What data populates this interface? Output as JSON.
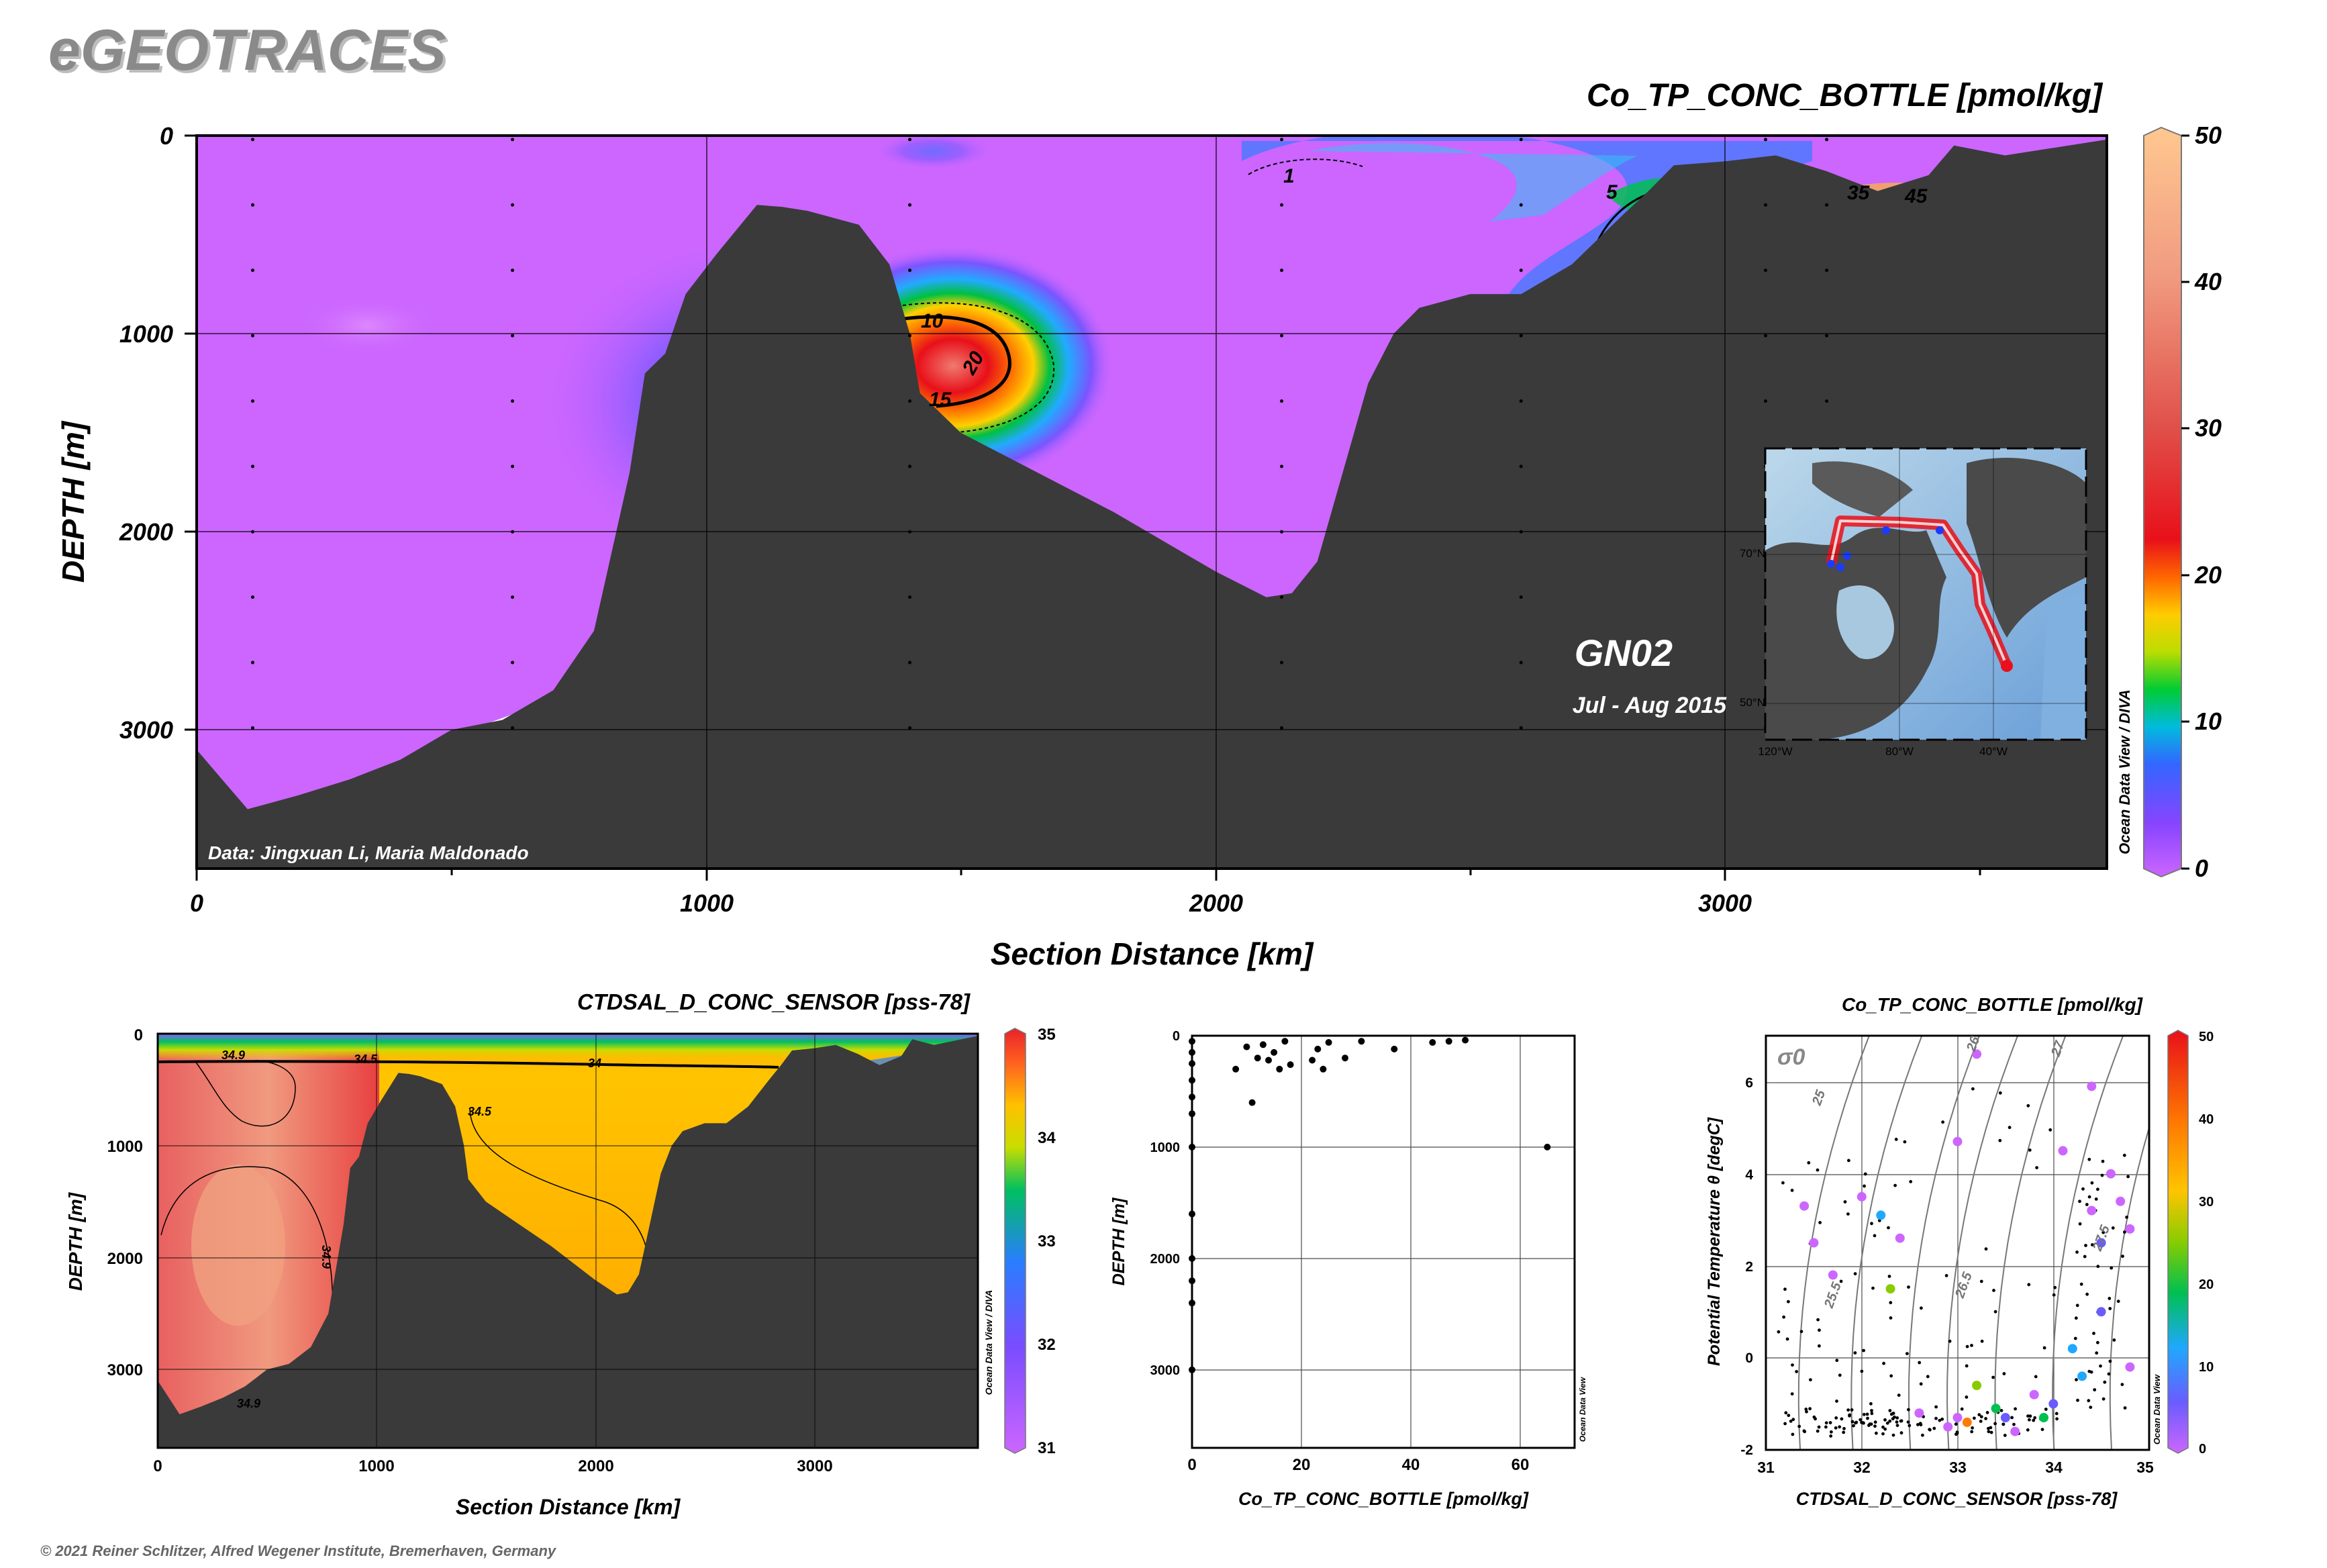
{
  "app": {
    "logo": "eGEOTRACES",
    "copyright": "© 2021 Reiner Schlitzer, Alfred Wegener Institute, Bremerhaven, Germany",
    "watermark": "Ocean Data View / DIVA",
    "watermark_small": "Ocean Data View"
  },
  "colors": {
    "bathymetry": "#3a3a3a",
    "background_low": "#cc66ff",
    "accent_red": "#e8101a"
  },
  "chart_data": [
    {
      "id": "main_section",
      "type": "heatmap",
      "title": "Co_TP_CONC_BOTTLE [pmol/kg]",
      "xlabel": "Section Distance [km]",
      "ylabel": "DEPTH [m]",
      "xlim": [
        0,
        3750
      ],
      "ylim": [
        3700,
        0
      ],
      "xticks": [
        "0",
        "1000",
        "2000",
        "3000"
      ],
      "yticks": [
        "0",
        "1000",
        "2000",
        "3000"
      ],
      "section_name": "GN02",
      "cruise_dates": "Jul - Aug 2015",
      "credit": "Data: Jingxuan Li, Maria Maldonado",
      "contour_labels": [
        "1",
        "5",
        "10",
        "15",
        "20",
        "35",
        "45"
      ],
      "colorbar": {
        "min": 0,
        "max": 50,
        "ticks": [
          "0",
          "10",
          "20",
          "30",
          "40",
          "50"
        ]
      },
      "inset_map": {
        "lat_labels": [
          "70°N",
          "50°N"
        ],
        "lon_labels": [
          "120°W",
          "80°W",
          "40°W"
        ]
      },
      "bathymetry_km_m": [
        [
          0,
          3100
        ],
        [
          50,
          3250
        ],
        [
          100,
          3400
        ],
        [
          200,
          3330
        ],
        [
          300,
          3250
        ],
        [
          400,
          3150
        ],
        [
          500,
          3000
        ],
        [
          600,
          2950
        ],
        [
          700,
          2800
        ],
        [
          780,
          2500
        ],
        [
          850,
          1700
        ],
        [
          880,
          1200
        ],
        [
          920,
          1100
        ],
        [
          960,
          800
        ],
        [
          1020,
          600
        ],
        [
          1100,
          350
        ],
        [
          1150,
          360
        ],
        [
          1200,
          380
        ],
        [
          1300,
          450
        ],
        [
          1360,
          650
        ],
        [
          1400,
          1000
        ],
        [
          1420,
          1300
        ],
        [
          1500,
          1500
        ],
        [
          1650,
          1700
        ],
        [
          1800,
          1900
        ],
        [
          2000,
          2200
        ],
        [
          2100,
          2330
        ],
        [
          2150,
          2310
        ],
        [
          2200,
          2150
        ],
        [
          2250,
          1700
        ],
        [
          2300,
          1250
        ],
        [
          2350,
          1000
        ],
        [
          2400,
          870
        ],
        [
          2500,
          800
        ],
        [
          2600,
          800
        ],
        [
          2700,
          650
        ],
        [
          2800,
          400
        ],
        [
          2850,
          280
        ],
        [
          2900,
          150
        ],
        [
          3000,
          130
        ],
        [
          3100,
          100
        ],
        [
          3200,
          180
        ],
        [
          3300,
          280
        ],
        [
          3400,
          200
        ],
        [
          3450,
          50
        ],
        [
          3550,
          100
        ],
        [
          3650,
          60
        ],
        [
          3750,
          20
        ]
      ]
    },
    {
      "id": "salinity_section",
      "type": "heatmap",
      "title": "CTDSAL_D_CONC_SENSOR [pss-78]",
      "xlabel": "Section Distance [km]",
      "ylabel": "DEPTH [m]",
      "xlim": [
        0,
        3750
      ],
      "ylim": [
        3700,
        0
      ],
      "xticks": [
        "0",
        "1000",
        "2000",
        "3000"
      ],
      "yticks": [
        "0",
        "1000",
        "2000",
        "3000"
      ],
      "contour_labels": [
        "34.9",
        "34.5",
        "34",
        "34.5",
        "34.9",
        "34.9"
      ],
      "colorbar": {
        "min": 31,
        "max": 35,
        "ticks": [
          "31",
          "32",
          "33",
          "34",
          "35"
        ]
      }
    },
    {
      "id": "profile_scatter",
      "type": "scatter",
      "xlabel": "Co_TP_CONC_BOTTLE [pmol/kg]",
      "ylabel": "DEPTH [m]",
      "xlim": [
        0,
        70
      ],
      "ylim": [
        3700,
        0
      ],
      "xticks": [
        "0",
        "20",
        "40",
        "60"
      ],
      "yticks": [
        "0",
        "1000",
        "2000",
        "3000"
      ],
      "points": [
        [
          0,
          50
        ],
        [
          0,
          150
        ],
        [
          0,
          250
        ],
        [
          0,
          400
        ],
        [
          0,
          550
        ],
        [
          0,
          700
        ],
        [
          0,
          1000
        ],
        [
          0,
          1600
        ],
        [
          0,
          2000
        ],
        [
          0,
          2200
        ],
        [
          0,
          2400
        ],
        [
          0,
          3000
        ],
        [
          8,
          300
        ],
        [
          10,
          100
        ],
        [
          11,
          600
        ],
        [
          12,
          200
        ],
        [
          13,
          80
        ],
        [
          14,
          220
        ],
        [
          15,
          150
        ],
        [
          16,
          300
        ],
        [
          17,
          50
        ],
        [
          18,
          260
        ],
        [
          22,
          220
        ],
        [
          23,
          120
        ],
        [
          24,
          300
        ],
        [
          25,
          60
        ],
        [
          28,
          200
        ],
        [
          31,
          50
        ],
        [
          37,
          120
        ],
        [
          44,
          60
        ],
        [
          47,
          50
        ],
        [
          50,
          40
        ],
        [
          65,
          1000
        ]
      ]
    },
    {
      "id": "ts_scatter",
      "type": "scatter",
      "title": "Co_TP_CONC_BOTTLE [pmol/kg]",
      "xlabel": "CTDSAL_D_CONC_SENSOR [pss-78]",
      "ylabel": "Potential Temperature θ [degC]",
      "xlim": [
        31,
        35
      ],
      "ylim": [
        -2,
        7
      ],
      "xticks": [
        "31",
        "32",
        "33",
        "34",
        "35"
      ],
      "yticks": [
        "-2",
        "0",
        "2",
        "4",
        "6"
      ],
      "isopycnal_labels": [
        "25",
        "25.5",
        "26",
        "26.5",
        "27",
        "27.5"
      ],
      "sigma_label": "σ0",
      "colorbar": {
        "min": 0,
        "max": 50,
        "ticks": [
          "0",
          "10",
          "20",
          "30",
          "40",
          "50"
        ]
      },
      "colored_points": [
        [
          31.4,
          3.3,
          3
        ],
        [
          31.5,
          2.5,
          2
        ],
        [
          31.7,
          1.8,
          3
        ],
        [
          32.0,
          3.5,
          3
        ],
        [
          32.2,
          3.1,
          18
        ],
        [
          32.3,
          1.5,
          30
        ],
        [
          32.4,
          2.6,
          2
        ],
        [
          33.2,
          6.6,
          3
        ],
        [
          33.0,
          4.7,
          0
        ],
        [
          32.9,
          -1.5,
          3
        ],
        [
          33.0,
          -1.3,
          2
        ],
        [
          33.2,
          -0.6,
          30
        ],
        [
          33.4,
          -1.1,
          22
        ],
        [
          33.5,
          -1.3,
          10
        ],
        [
          33.6,
          -1.6,
          3
        ],
        [
          33.8,
          -0.8,
          3
        ],
        [
          34.1,
          4.5,
          3
        ],
        [
          34.2,
          0.2,
          16
        ],
        [
          34.3,
          -0.4,
          12
        ],
        [
          34.4,
          3.2,
          3
        ],
        [
          34.5,
          2.5,
          11
        ],
        [
          34.5,
          1.0,
          8
        ],
        [
          34.6,
          4.0,
          5
        ],
        [
          34.7,
          3.4,
          2
        ],
        [
          34.8,
          2.8,
          3
        ],
        [
          34.8,
          -0.2,
          3
        ],
        [
          34.4,
          5.9,
          2
        ],
        [
          33.1,
          -1.4,
          45
        ],
        [
          32.6,
          -1.2,
          2
        ],
        [
          33.9,
          -1.3,
          20
        ],
        [
          34.0,
          -1.0,
          6
        ]
      ]
    }
  ]
}
